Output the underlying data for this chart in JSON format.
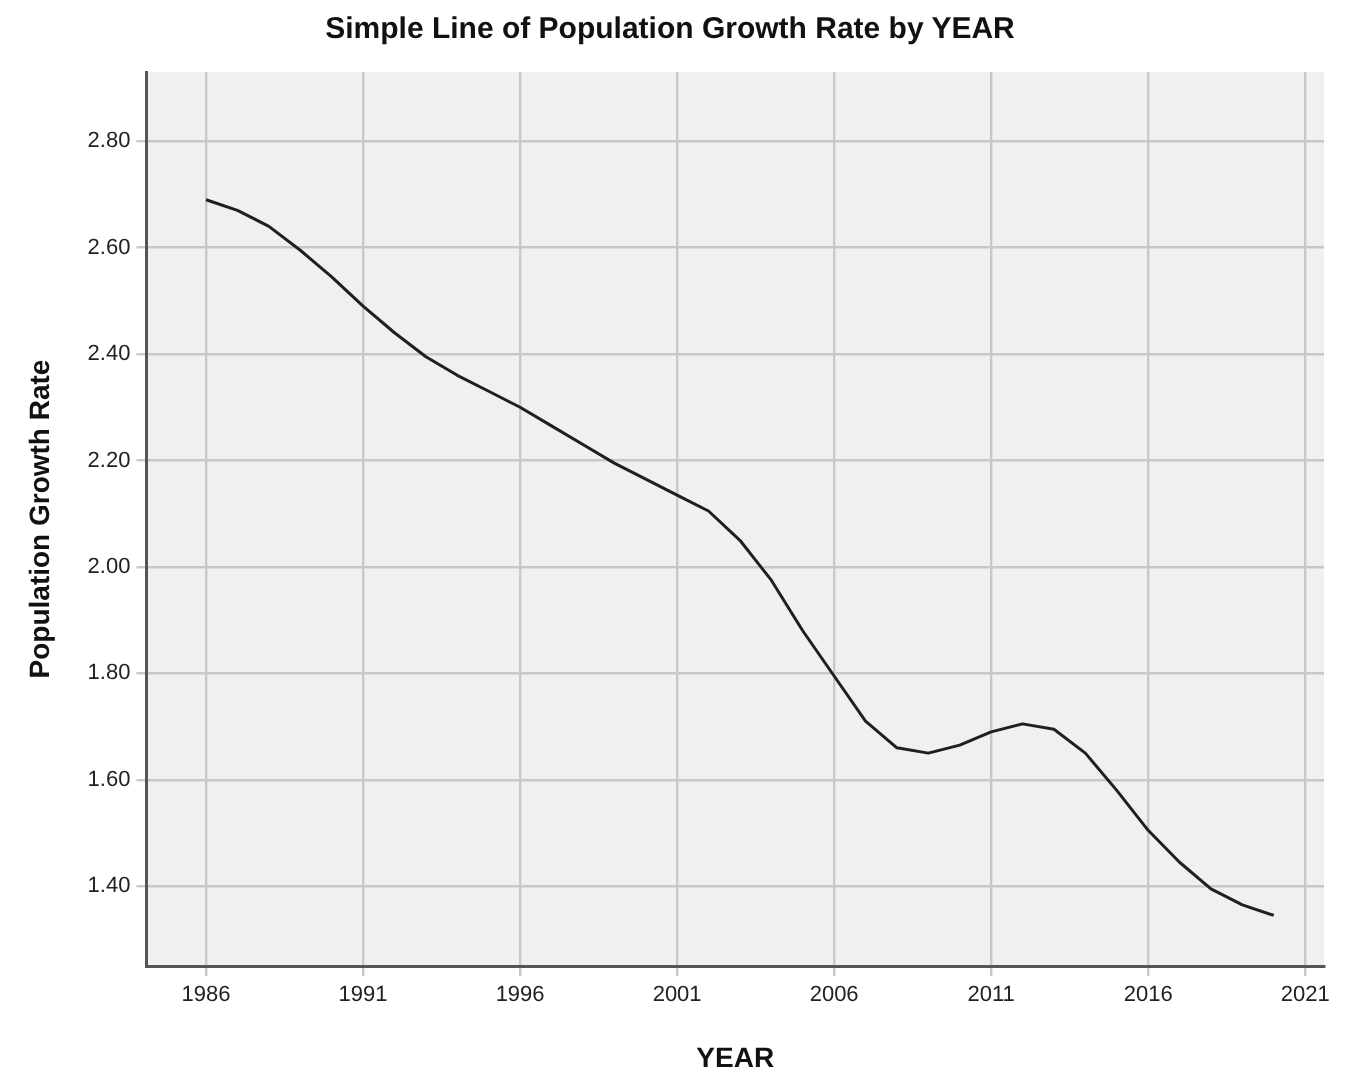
{
  "chart_data": {
    "type": "line",
    "title": "Simple Line of Population Growth Rate by YEAR",
    "xlabel": "YEAR",
    "ylabel": "Population Growth Rate",
    "x": [
      1986,
      1987,
      1988,
      1989,
      1990,
      1991,
      1992,
      1993,
      1994,
      1995,
      1996,
      1997,
      1998,
      1999,
      2000,
      2001,
      2002,
      2003,
      2004,
      2005,
      2006,
      2007,
      2008,
      2009,
      2010,
      2011,
      2012,
      2013,
      2014,
      2015,
      2016,
      2017,
      2018,
      2019,
      2020
    ],
    "series": [
      {
        "color": "#1f1f1f",
        "values": [
          2.69,
          2.67,
          2.64,
          2.595,
          2.545,
          2.49,
          2.44,
          2.395,
          2.36,
          2.33,
          2.3,
          2.265,
          2.23,
          2.195,
          2.165,
          2.135,
          2.105,
          2.05,
          1.975,
          1.88,
          1.795,
          1.71,
          1.66,
          1.65,
          1.665,
          1.69,
          1.705,
          1.695,
          1.65,
          1.58,
          1.505,
          1.445,
          1.395,
          1.365,
          1.345
        ]
      }
    ],
    "xlim": [
      1984.1,
      2021.6
    ],
    "xticks": [
      1986,
      1991,
      1996,
      2001,
      2006,
      2011,
      2016,
      2021
    ],
    "ylim": [
      1.25,
      2.93
    ],
    "yticks": [
      {
        "value": 1.4,
        "label": "1.40"
      },
      {
        "value": 1.6,
        "label": "1.60"
      },
      {
        "value": 1.8,
        "label": "1.80"
      },
      {
        "value": 2.0,
        "label": "2.00"
      },
      {
        "value": 2.2,
        "label": "2.20"
      },
      {
        "value": 2.4,
        "label": "2.40"
      },
      {
        "value": 2.6,
        "label": "2.60"
      },
      {
        "value": 2.8,
        "label": "2.80"
      }
    ],
    "grid": true,
    "legend": false,
    "marker": "none",
    "line_style": "solid"
  }
}
